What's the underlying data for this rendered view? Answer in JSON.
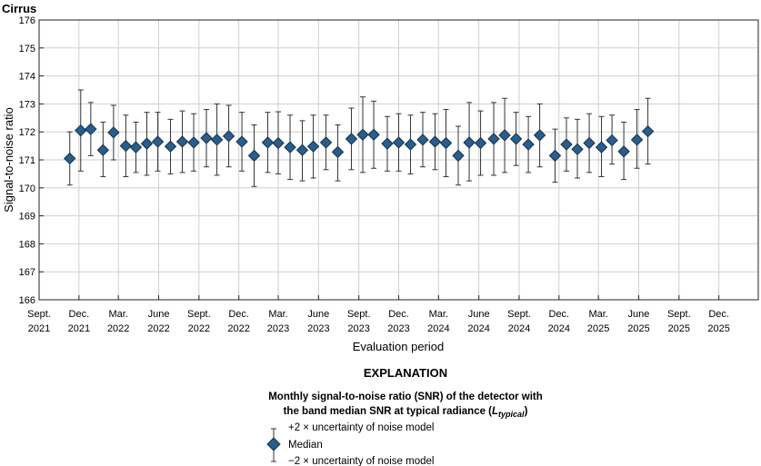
{
  "chart_data": {
    "type": "scatter",
    "title": "Cirrus",
    "xlabel": "Evaluation period",
    "ylabel": "Signal-to-noise ratio",
    "ylim": [
      166,
      176
    ],
    "yticks": [
      166,
      167,
      168,
      169,
      170,
      171,
      172,
      173,
      174,
      175,
      176
    ],
    "x_tick_labels": [
      [
        "Sept.",
        "2021"
      ],
      [
        "Dec.",
        "2021"
      ],
      [
        "Mar.",
        "2022"
      ],
      [
        "June",
        "2022"
      ],
      [
        "Sept.",
        "2022"
      ],
      [
        "Dec.",
        "2022"
      ],
      [
        "Mar.",
        "2023"
      ],
      [
        "June",
        "2023"
      ],
      [
        "Sept.",
        "2023"
      ],
      [
        "Dec.",
        "2023"
      ],
      [
        "Mar.",
        "2024"
      ],
      [
        "June",
        "2024"
      ],
      [
        "Sept.",
        "2024"
      ],
      [
        "Dec.",
        "2024"
      ],
      [
        "Mar.",
        "2025"
      ],
      [
        "June",
        "2025"
      ],
      [
        "Sept.",
        "2025"
      ],
      [
        "Dec.",
        "2025"
      ]
    ],
    "grid": true,
    "series": [
      {
        "name": "Median",
        "marker": "diamond",
        "color": "#2a5d8a",
        "errorbar_color": "#333333",
        "points": [
          {
            "date": "2021-11-10",
            "median": 171.05,
            "upper": 172.0,
            "lower": 170.1
          },
          {
            "date": "2021-12-05",
            "median": 172.05,
            "upper": 173.5,
            "lower": 170.6
          },
          {
            "date": "2021-12-28",
            "median": 172.1,
            "upper": 173.05,
            "lower": 171.15
          },
          {
            "date": "2022-01-25",
            "median": 171.35,
            "upper": 172.35,
            "lower": 170.4
          },
          {
            "date": "2022-02-18",
            "median": 171.98,
            "upper": 172.95,
            "lower": 171.0
          },
          {
            "date": "2022-03-18",
            "median": 171.5,
            "upper": 172.6,
            "lower": 170.4
          },
          {
            "date": "2022-04-10",
            "median": 171.45,
            "upper": 172.35,
            "lower": 170.55
          },
          {
            "date": "2022-05-05",
            "median": 171.58,
            "upper": 172.7,
            "lower": 170.45
          },
          {
            "date": "2022-05-30",
            "median": 171.65,
            "upper": 172.7,
            "lower": 170.6
          },
          {
            "date": "2022-06-28",
            "median": 171.48,
            "upper": 172.45,
            "lower": 170.5
          },
          {
            "date": "2022-07-25",
            "median": 171.65,
            "upper": 172.75,
            "lower": 170.55
          },
          {
            "date": "2022-08-20",
            "median": 171.62,
            "upper": 172.65,
            "lower": 170.6
          },
          {
            "date": "2022-09-18",
            "median": 171.78,
            "upper": 172.8,
            "lower": 170.75
          },
          {
            "date": "2022-10-12",
            "median": 171.72,
            "upper": 173.0,
            "lower": 170.45
          },
          {
            "date": "2022-11-08",
            "median": 171.85,
            "upper": 172.95,
            "lower": 170.75
          },
          {
            "date": "2022-12-08",
            "median": 171.65,
            "upper": 172.7,
            "lower": 170.6
          },
          {
            "date": "2023-01-05",
            "median": 171.15,
            "upper": 172.25,
            "lower": 170.05
          },
          {
            "date": "2023-02-05",
            "median": 171.62,
            "upper": 172.7,
            "lower": 170.55
          },
          {
            "date": "2023-03-01",
            "median": 171.6,
            "upper": 172.72,
            "lower": 170.5
          },
          {
            "date": "2023-03-28",
            "median": 171.45,
            "upper": 172.6,
            "lower": 170.3
          },
          {
            "date": "2023-04-25",
            "median": 171.35,
            "upper": 172.4,
            "lower": 170.25
          },
          {
            "date": "2023-05-20",
            "median": 171.48,
            "upper": 172.6,
            "lower": 170.35
          },
          {
            "date": "2023-06-18",
            "median": 171.62,
            "upper": 172.6,
            "lower": 170.65
          },
          {
            "date": "2023-07-15",
            "median": 171.28,
            "upper": 172.25,
            "lower": 170.25
          },
          {
            "date": "2023-08-15",
            "median": 171.75,
            "upper": 172.85,
            "lower": 170.65
          },
          {
            "date": "2023-09-10",
            "median": 171.9,
            "upper": 173.25,
            "lower": 170.55
          },
          {
            "date": "2023-10-05",
            "median": 171.9,
            "upper": 173.1,
            "lower": 170.7
          },
          {
            "date": "2023-11-05",
            "median": 171.58,
            "upper": 172.55,
            "lower": 170.6
          },
          {
            "date": "2023-12-01",
            "median": 171.62,
            "upper": 172.65,
            "lower": 170.6
          },
          {
            "date": "2023-12-28",
            "median": 171.55,
            "upper": 172.6,
            "lower": 170.5
          },
          {
            "date": "2024-01-25",
            "median": 171.72,
            "upper": 172.7,
            "lower": 170.75
          },
          {
            "date": "2024-02-22",
            "median": 171.65,
            "upper": 172.65,
            "lower": 170.65
          },
          {
            "date": "2024-03-18",
            "median": 171.6,
            "upper": 172.8,
            "lower": 170.4
          },
          {
            "date": "2024-04-15",
            "median": 171.15,
            "upper": 172.2,
            "lower": 170.1
          },
          {
            "date": "2024-05-10",
            "median": 171.62,
            "upper": 173.05,
            "lower": 170.25
          },
          {
            "date": "2024-06-05",
            "median": 171.6,
            "upper": 172.75,
            "lower": 170.45
          },
          {
            "date": "2024-07-05",
            "median": 171.75,
            "upper": 173.05,
            "lower": 170.45
          },
          {
            "date": "2024-07-30",
            "median": 171.88,
            "upper": 173.2,
            "lower": 170.55
          },
          {
            "date": "2024-08-25",
            "median": 171.75,
            "upper": 172.7,
            "lower": 170.8
          },
          {
            "date": "2024-09-22",
            "median": 171.55,
            "upper": 172.55,
            "lower": 170.55
          },
          {
            "date": "2024-10-18",
            "median": 171.88,
            "upper": 173.0,
            "lower": 170.75
          },
          {
            "date": "2024-11-22",
            "median": 171.15,
            "upper": 172.1,
            "lower": 170.2
          },
          {
            "date": "2024-12-18",
            "median": 171.55,
            "upper": 172.5,
            "lower": 170.6
          },
          {
            "date": "2025-01-12",
            "median": 171.38,
            "upper": 172.45,
            "lower": 170.35
          },
          {
            "date": "2025-02-08",
            "median": 171.6,
            "upper": 172.65,
            "lower": 170.55
          },
          {
            "date": "2025-03-08",
            "median": 171.45,
            "upper": 172.55,
            "lower": 170.4
          },
          {
            "date": "2025-04-01",
            "median": 171.7,
            "upper": 172.6,
            "lower": 170.85
          },
          {
            "date": "2025-04-28",
            "median": 171.3,
            "upper": 172.35,
            "lower": 170.3
          },
          {
            "date": "2025-05-28",
            "median": 171.72,
            "upper": 172.8,
            "lower": 170.7
          },
          {
            "date": "2025-06-22",
            "median": 172.02,
            "upper": 173.2,
            "lower": 170.85
          }
        ]
      }
    ]
  },
  "explanation": {
    "heading": "EXPLANATION",
    "desc_line1": "Monthly signal-to-noise ratio (SNR) of the detector with",
    "desc_line2_prefix": "the band median SNR at typical radiance (",
    "desc_line2_symbol": "L",
    "desc_line2_subscript": "typical",
    "desc_line2_suffix": ")",
    "legend_upper": "+2 × uncertainty of noise model",
    "legend_median": "Median",
    "legend_lower": "−2 × uncertainty of noise model"
  }
}
